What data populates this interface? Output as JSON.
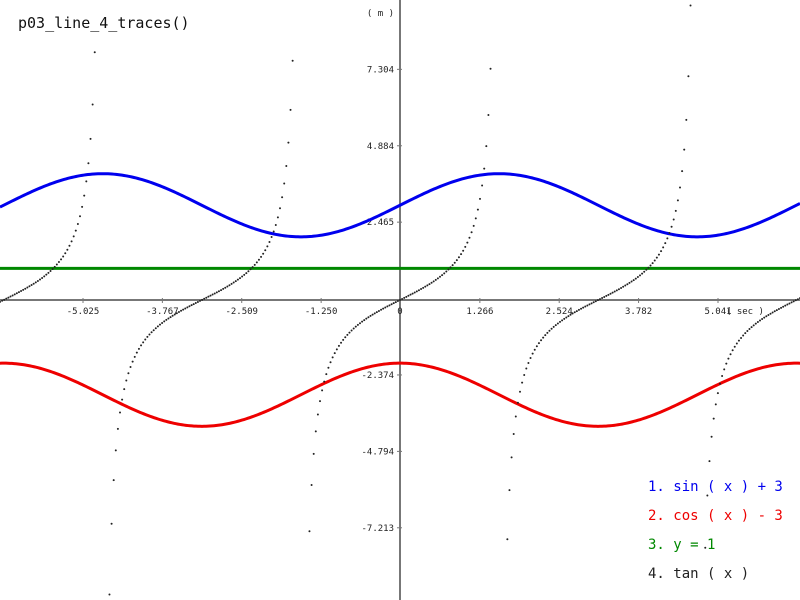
{
  "chart_data": {
    "type": "line",
    "title": "p03_line_4_traces()",
    "xlabel": "( sec )",
    "ylabel": "( m )",
    "xlim": [
      -6.341,
      6.341
    ],
    "ylim": [
      -9.5,
      9.5
    ],
    "x_ticks": [
      "-5.025",
      "-3.767",
      "-2.509",
      "-1.250",
      "0",
      "1.266",
      "2.524",
      "3.782",
      "5.041"
    ],
    "y_ticks": [
      "7.304",
      "4.884",
      "2.465",
      "-2.374",
      "-4.794",
      "-7.213"
    ],
    "series": [
      {
        "name": "1. sin ( x ) + 3",
        "color": "#0000ee",
        "expr": "sin(x)+3"
      },
      {
        "name": "2. cos ( x ) - 3",
        "color": "#ee0000",
        "expr": "cos(x)-3"
      },
      {
        "name": "3. y = 1",
        "color": "#008800",
        "expr": "1"
      },
      {
        "name": "4. tan ( x )",
        "color": "#222222",
        "expr": "tan(x)",
        "style": "dots"
      }
    ],
    "grid": false,
    "legend_position": "bottom-right"
  }
}
